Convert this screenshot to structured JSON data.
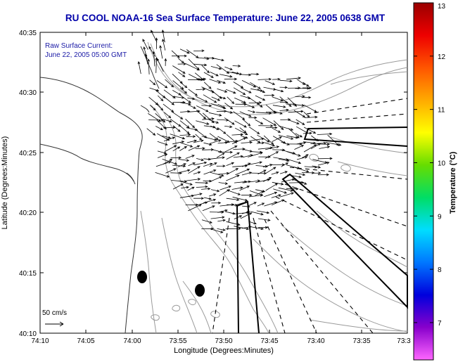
{
  "title": "RU COOL  NOAA-16  Sea Surface Temperature:  June 22, 2005 0638 GMT",
  "legend": {
    "line1": "Raw Surface Current:",
    "line2": "June 22, 2005 05:00 GMT",
    "color": "#1a1aa6"
  },
  "axes": {
    "x_label": "Longitude (Degrees:Minutes)",
    "y_label": "Latitude (Degrees:Minutes)",
    "x_ticks": [
      "74:10",
      "74:05",
      "74:00",
      "73:55",
      "73:50",
      "73:45",
      "73:40",
      "73:35",
      "73:3"
    ],
    "y_ticks": [
      "40:35",
      "40:30",
      "40:25",
      "40:20",
      "40:15",
      "40:10"
    ]
  },
  "scale_bar": {
    "label": "50 cm/s"
  },
  "colorbar": {
    "label": "Temperature (°C)",
    "ticks": [
      "13",
      "12",
      "11",
      "10",
      "9",
      "8",
      "7"
    ],
    "min": 6.3,
    "max": 13,
    "stops": [
      "#ff66ff",
      "#8800cc",
      "#0000dd",
      "#0077ff",
      "#00ddff",
      "#00dd66",
      "#66dd00",
      "#ffff00",
      "#ffaa00",
      "#ff5500",
      "#ee0000",
      "#990000"
    ]
  },
  "colors": {
    "title": "#0000aa",
    "vector": "#000000",
    "contour": "#9a9a9a",
    "coast": "#333333"
  }
}
